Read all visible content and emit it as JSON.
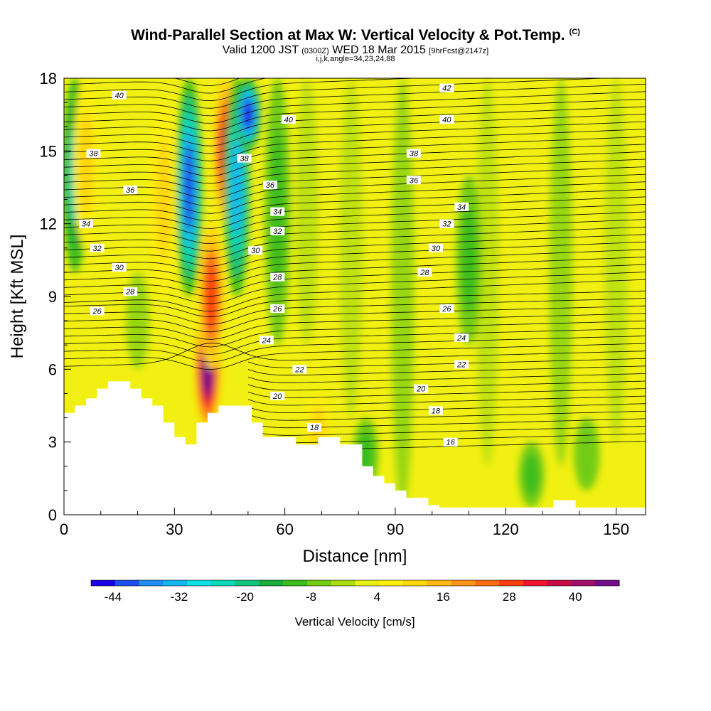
{
  "title": {
    "main": "Wind-Parallel Section at Max W: Vertical Velocity & Pot.Temp.",
    "copyright": "(C)",
    "valid_prefix": "Valid 1200 JST",
    "valid_z": "(0300Z)",
    "valid_date": "WED 18 Mar 2015",
    "valid_fcst": "[9hrFcst@2147z]",
    "indices": "i,j,k,angle=34,23,24,88"
  },
  "chart_data": {
    "type": "heatmap",
    "xlabel": "Distance [nm]",
    "ylabel": "Height [Kft MSL]",
    "xlim": [
      0,
      158
    ],
    "ylim": [
      0,
      18
    ],
    "x_ticks": [
      "0",
      "30",
      "60",
      "90",
      "120",
      "150"
    ],
    "y_ticks": [
      "0",
      "3",
      "6",
      "9",
      "12",
      "15",
      "18"
    ],
    "colorbar": {
      "label": "Vertical Velocity [cm/s]",
      "tick_labels": [
        "-44",
        "-32",
        "-20",
        "-8",
        "4",
        "16",
        "28",
        "40"
      ],
      "colors": [
        "#1a00e6",
        "#1c4ff0",
        "#1f8ff6",
        "#14b8ee",
        "#12e0e6",
        "#10d8b8",
        "#13c47e",
        "#1aae3c",
        "#3cbe1e",
        "#72cc12",
        "#aadc12",
        "#e8f018",
        "#ffef10",
        "#ffd810",
        "#ffb818",
        "#ff9418",
        "#ff6e14",
        "#ff4010",
        "#f01430",
        "#c80c48",
        "#a0106a",
        "#740e8a"
      ]
    },
    "vertical_velocity_features": [
      {
        "kind": "updraft",
        "x": 39,
        "y": [
          3.5,
          8.5
        ],
        "peak": 48
      },
      {
        "kind": "updraft",
        "x": 40,
        "y": [
          6,
          12
        ],
        "peak": 28
      },
      {
        "kind": "updraft",
        "x": 44,
        "y": [
          12,
          18
        ],
        "peak": 36
      },
      {
        "kind": "downdraft",
        "x": 34,
        "y": [
          9,
          18
        ],
        "peak": -40
      },
      {
        "kind": "downdraft",
        "x": 47,
        "y": [
          9,
          18
        ],
        "peak": -32
      },
      {
        "kind": "downdraft",
        "x": 50,
        "y": [
          15,
          18
        ],
        "peak": -44
      },
      {
        "kind": "downdraft",
        "x": 3,
        "y": [
          10,
          18
        ],
        "peak": -24
      },
      {
        "kind": "updraft",
        "x": 6,
        "y": [
          11,
          18
        ],
        "peak": 12
      },
      {
        "kind": "updraft",
        "x": 27,
        "y": [
          9,
          17
        ],
        "peak": 12
      },
      {
        "kind": "downdraft",
        "x": 58,
        "y": [
          7,
          18
        ],
        "peak": -12
      },
      {
        "kind": "updraft",
        "x": 69,
        "y": [
          2,
          5
        ],
        "peak": 12
      },
      {
        "kind": "downdraft",
        "x": 82,
        "y": [
          1,
          4
        ],
        "peak": -12
      },
      {
        "kind": "downdraft",
        "x": 110,
        "y": [
          7,
          14
        ],
        "peak": -10
      },
      {
        "kind": "downdraft",
        "x": 127,
        "y": [
          0.3,
          3
        ],
        "peak": -12
      },
      {
        "kind": "downdraft",
        "x": 142,
        "y": [
          1,
          4
        ],
        "peak": -8
      }
    ],
    "pot_temp_contour_labels": [
      {
        "text": "40",
        "x": 15,
        "y": 17.3
      },
      {
        "text": "40",
        "x": 61,
        "y": 16.3
      },
      {
        "text": "40",
        "x": 104,
        "y": 16.3
      },
      {
        "text": "42",
        "x": 104,
        "y": 17.6
      },
      {
        "text": "38",
        "x": 8,
        "y": 14.9
      },
      {
        "text": "38",
        "x": 49,
        "y": 14.7
      },
      {
        "text": "38",
        "x": 95,
        "y": 14.9
      },
      {
        "text": "36",
        "x": 18,
        "y": 13.4
      },
      {
        "text": "36",
        "x": 56,
        "y": 13.6
      },
      {
        "text": "36",
        "x": 95,
        "y": 13.8
      },
      {
        "text": "34",
        "x": 6,
        "y": 12.0
      },
      {
        "text": "34",
        "x": 58,
        "y": 12.5
      },
      {
        "text": "34",
        "x": 108,
        "y": 12.7
      },
      {
        "text": "32",
        "x": 9,
        "y": 11.0
      },
      {
        "text": "32",
        "x": 58,
        "y": 11.7
      },
      {
        "text": "32",
        "x": 104,
        "y": 12.0
      },
      {
        "text": "30",
        "x": 15,
        "y": 10.2
      },
      {
        "text": "30",
        "x": 52,
        "y": 10.9
      },
      {
        "text": "30",
        "x": 101,
        "y": 11.0
      },
      {
        "text": "28",
        "x": 18,
        "y": 9.2
      },
      {
        "text": "28",
        "x": 58,
        "y": 9.8
      },
      {
        "text": "28",
        "x": 98,
        "y": 10.0
      },
      {
        "text": "26",
        "x": 9,
        "y": 8.4
      },
      {
        "text": "26",
        "x": 58,
        "y": 8.5
      },
      {
        "text": "26",
        "x": 104,
        "y": 8.5
      },
      {
        "text": "24",
        "x": 55,
        "y": 7.2
      },
      {
        "text": "24",
        "x": 108,
        "y": 7.3
      },
      {
        "text": "22",
        "x": 64,
        "y": 6.0
      },
      {
        "text": "22",
        "x": 108,
        "y": 6.2
      },
      {
        "text": "20",
        "x": 58,
        "y": 4.9
      },
      {
        "text": "20",
        "x": 97,
        "y": 5.2
      },
      {
        "text": "18",
        "x": 68,
        "y": 3.6
      },
      {
        "text": "18",
        "x": 101,
        "y": 4.3
      },
      {
        "text": "16",
        "x": 105,
        "y": 3.0
      }
    ],
    "terrain_heights_kft": [
      [
        0,
        4.2
      ],
      [
        3,
        4.2
      ],
      [
        3,
        4.5
      ],
      [
        6,
        4.5
      ],
      [
        6,
        4.8
      ],
      [
        9,
        4.8
      ],
      [
        9,
        5.2
      ],
      [
        12,
        5.2
      ],
      [
        12,
        5.5
      ],
      [
        18,
        5.5
      ],
      [
        18,
        5.2
      ],
      [
        21,
        5.2
      ],
      [
        21,
        4.8
      ],
      [
        24,
        4.8
      ],
      [
        24,
        4.5
      ],
      [
        27,
        4.5
      ],
      [
        27,
        3.8
      ],
      [
        30,
        3.8
      ],
      [
        30,
        3.2
      ],
      [
        33,
        3.2
      ],
      [
        33,
        2.9
      ],
      [
        36,
        2.9
      ],
      [
        36,
        3.8
      ],
      [
        39,
        3.8
      ],
      [
        39,
        4.2
      ],
      [
        42,
        4.2
      ],
      [
        42,
        4.5
      ],
      [
        51,
        4.5
      ],
      [
        51,
        3.8
      ],
      [
        54,
        3.8
      ],
      [
        54,
        3.2
      ],
      [
        63,
        3.2
      ],
      [
        63,
        2.9
      ],
      [
        69,
        2.9
      ],
      [
        69,
        3.2
      ],
      [
        75,
        3.2
      ],
      [
        75,
        2.9
      ],
      [
        81,
        2.9
      ],
      [
        81,
        2.0
      ],
      [
        84,
        2.0
      ],
      [
        84,
        1.6
      ],
      [
        87,
        1.6
      ],
      [
        87,
        1.3
      ],
      [
        90,
        1.3
      ],
      [
        90,
        1.0
      ],
      [
        93,
        1.0
      ],
      [
        93,
        0.7
      ],
      [
        99,
        0.7
      ],
      [
        99,
        0.4
      ],
      [
        102,
        0.4
      ],
      [
        102,
        0.3
      ],
      [
        133,
        0.3
      ],
      [
        133,
        0.6
      ],
      [
        139,
        0.6
      ],
      [
        139,
        0.3
      ],
      [
        158,
        0.3
      ]
    ]
  }
}
